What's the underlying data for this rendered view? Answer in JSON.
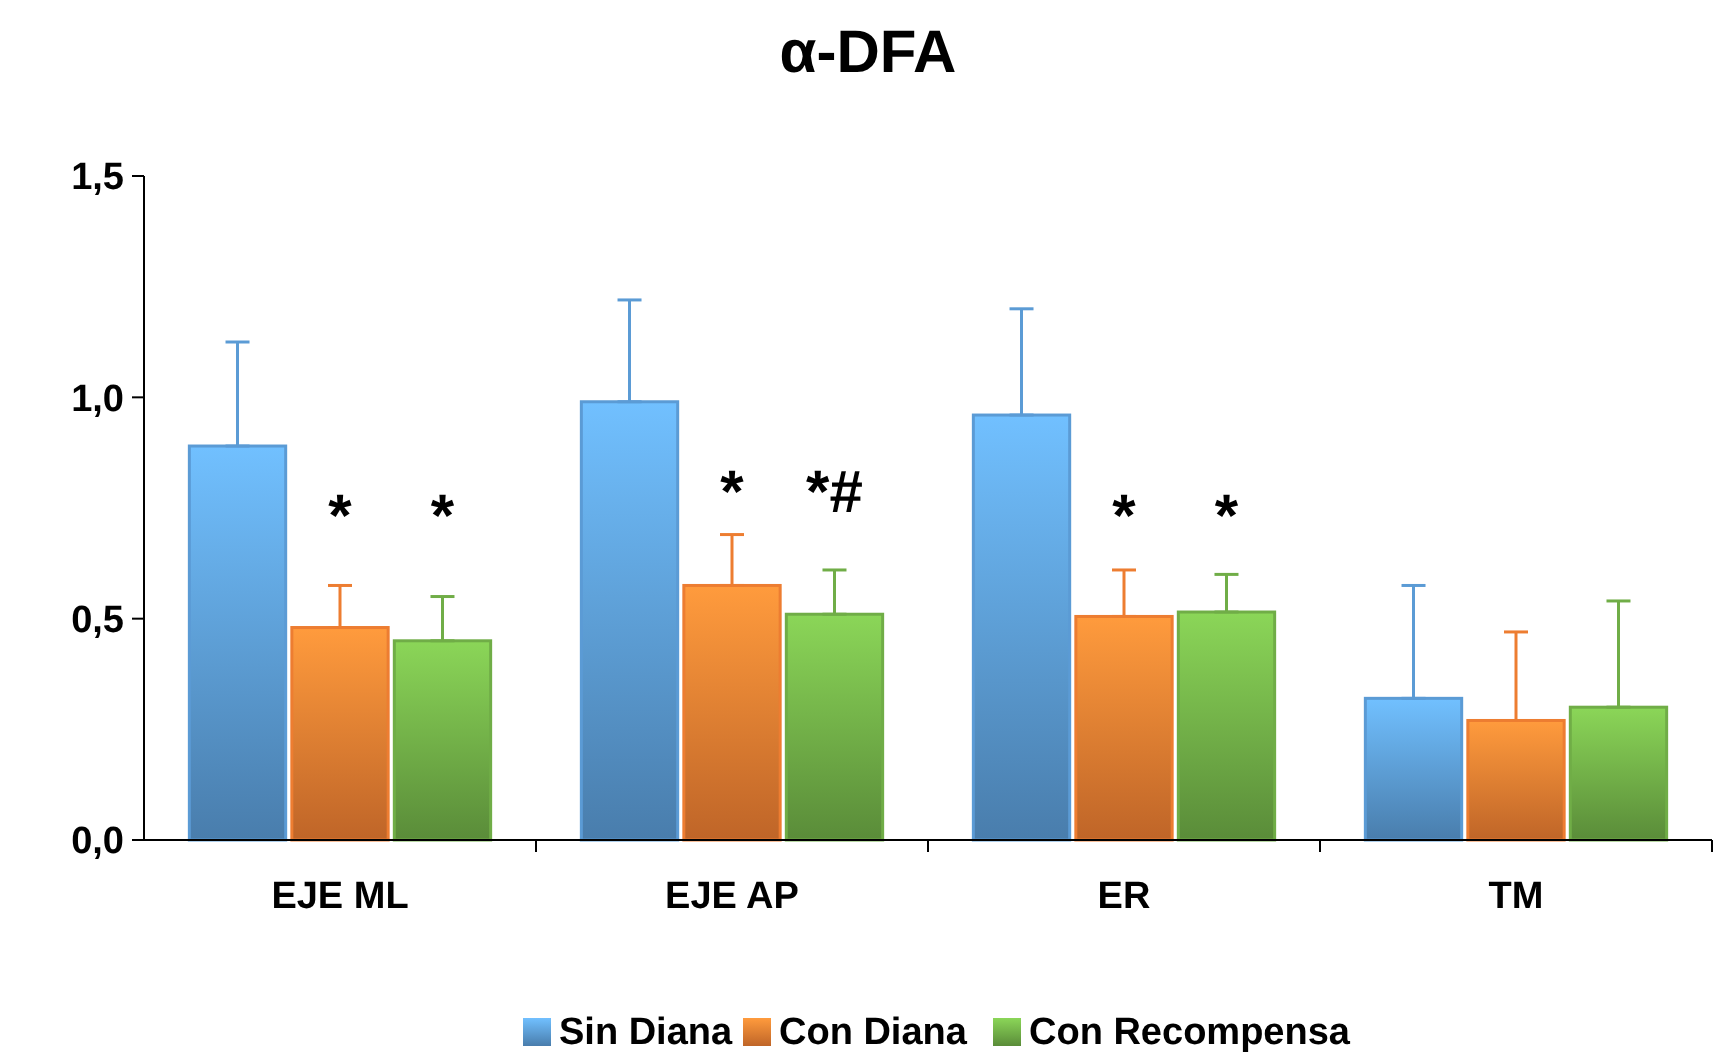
{
  "chart_data": {
    "type": "bar",
    "title": "α-DFA",
    "categories": [
      "EJE ML",
      "EJE AP",
      "ER",
      "TM"
    ],
    "series": [
      {
        "name": "Sin Diana",
        "color": "#5b9bd5",
        "values": [
          0.89,
          0.99,
          0.96,
          0.32
        ],
        "errors": [
          [
            0.89,
            1.125
          ],
          [
            0.99,
            1.22
          ],
          [
            0.96,
            1.2
          ],
          [
            0.32,
            0.575
          ]
        ]
      },
      {
        "name": "Con Diana",
        "color": "#ed7d31",
        "values": [
          0.48,
          0.575,
          0.505,
          0.27
        ],
        "errors": [
          [
            0.48,
            0.575
          ],
          [
            0.575,
            0.69
          ],
          [
            0.505,
            0.61
          ],
          [
            0.27,
            0.47
          ]
        ]
      },
      {
        "name": "Con Recompensa",
        "color": "#70ad47",
        "values": [
          0.45,
          0.51,
          0.515,
          0.3
        ],
        "errors": [
          [
            0.45,
            0.55
          ],
          [
            0.51,
            0.61
          ],
          [
            0.515,
            0.6
          ],
          [
            0.3,
            0.54
          ]
        ]
      }
    ],
    "ylim": [
      0,
      1.5
    ],
    "yticks": [
      {
        "value": 0,
        "label": "0,0"
      },
      {
        "value": 0.5,
        "label": "0,5"
      },
      {
        "value": 1,
        "label": "1,0"
      },
      {
        "value": 1.5,
        "label": "1,5"
      }
    ],
    "annotations": [
      "*",
      "*",
      "*",
      "*#",
      "*",
      "*"
    ],
    "legend": "bottom",
    "grid": false
  }
}
